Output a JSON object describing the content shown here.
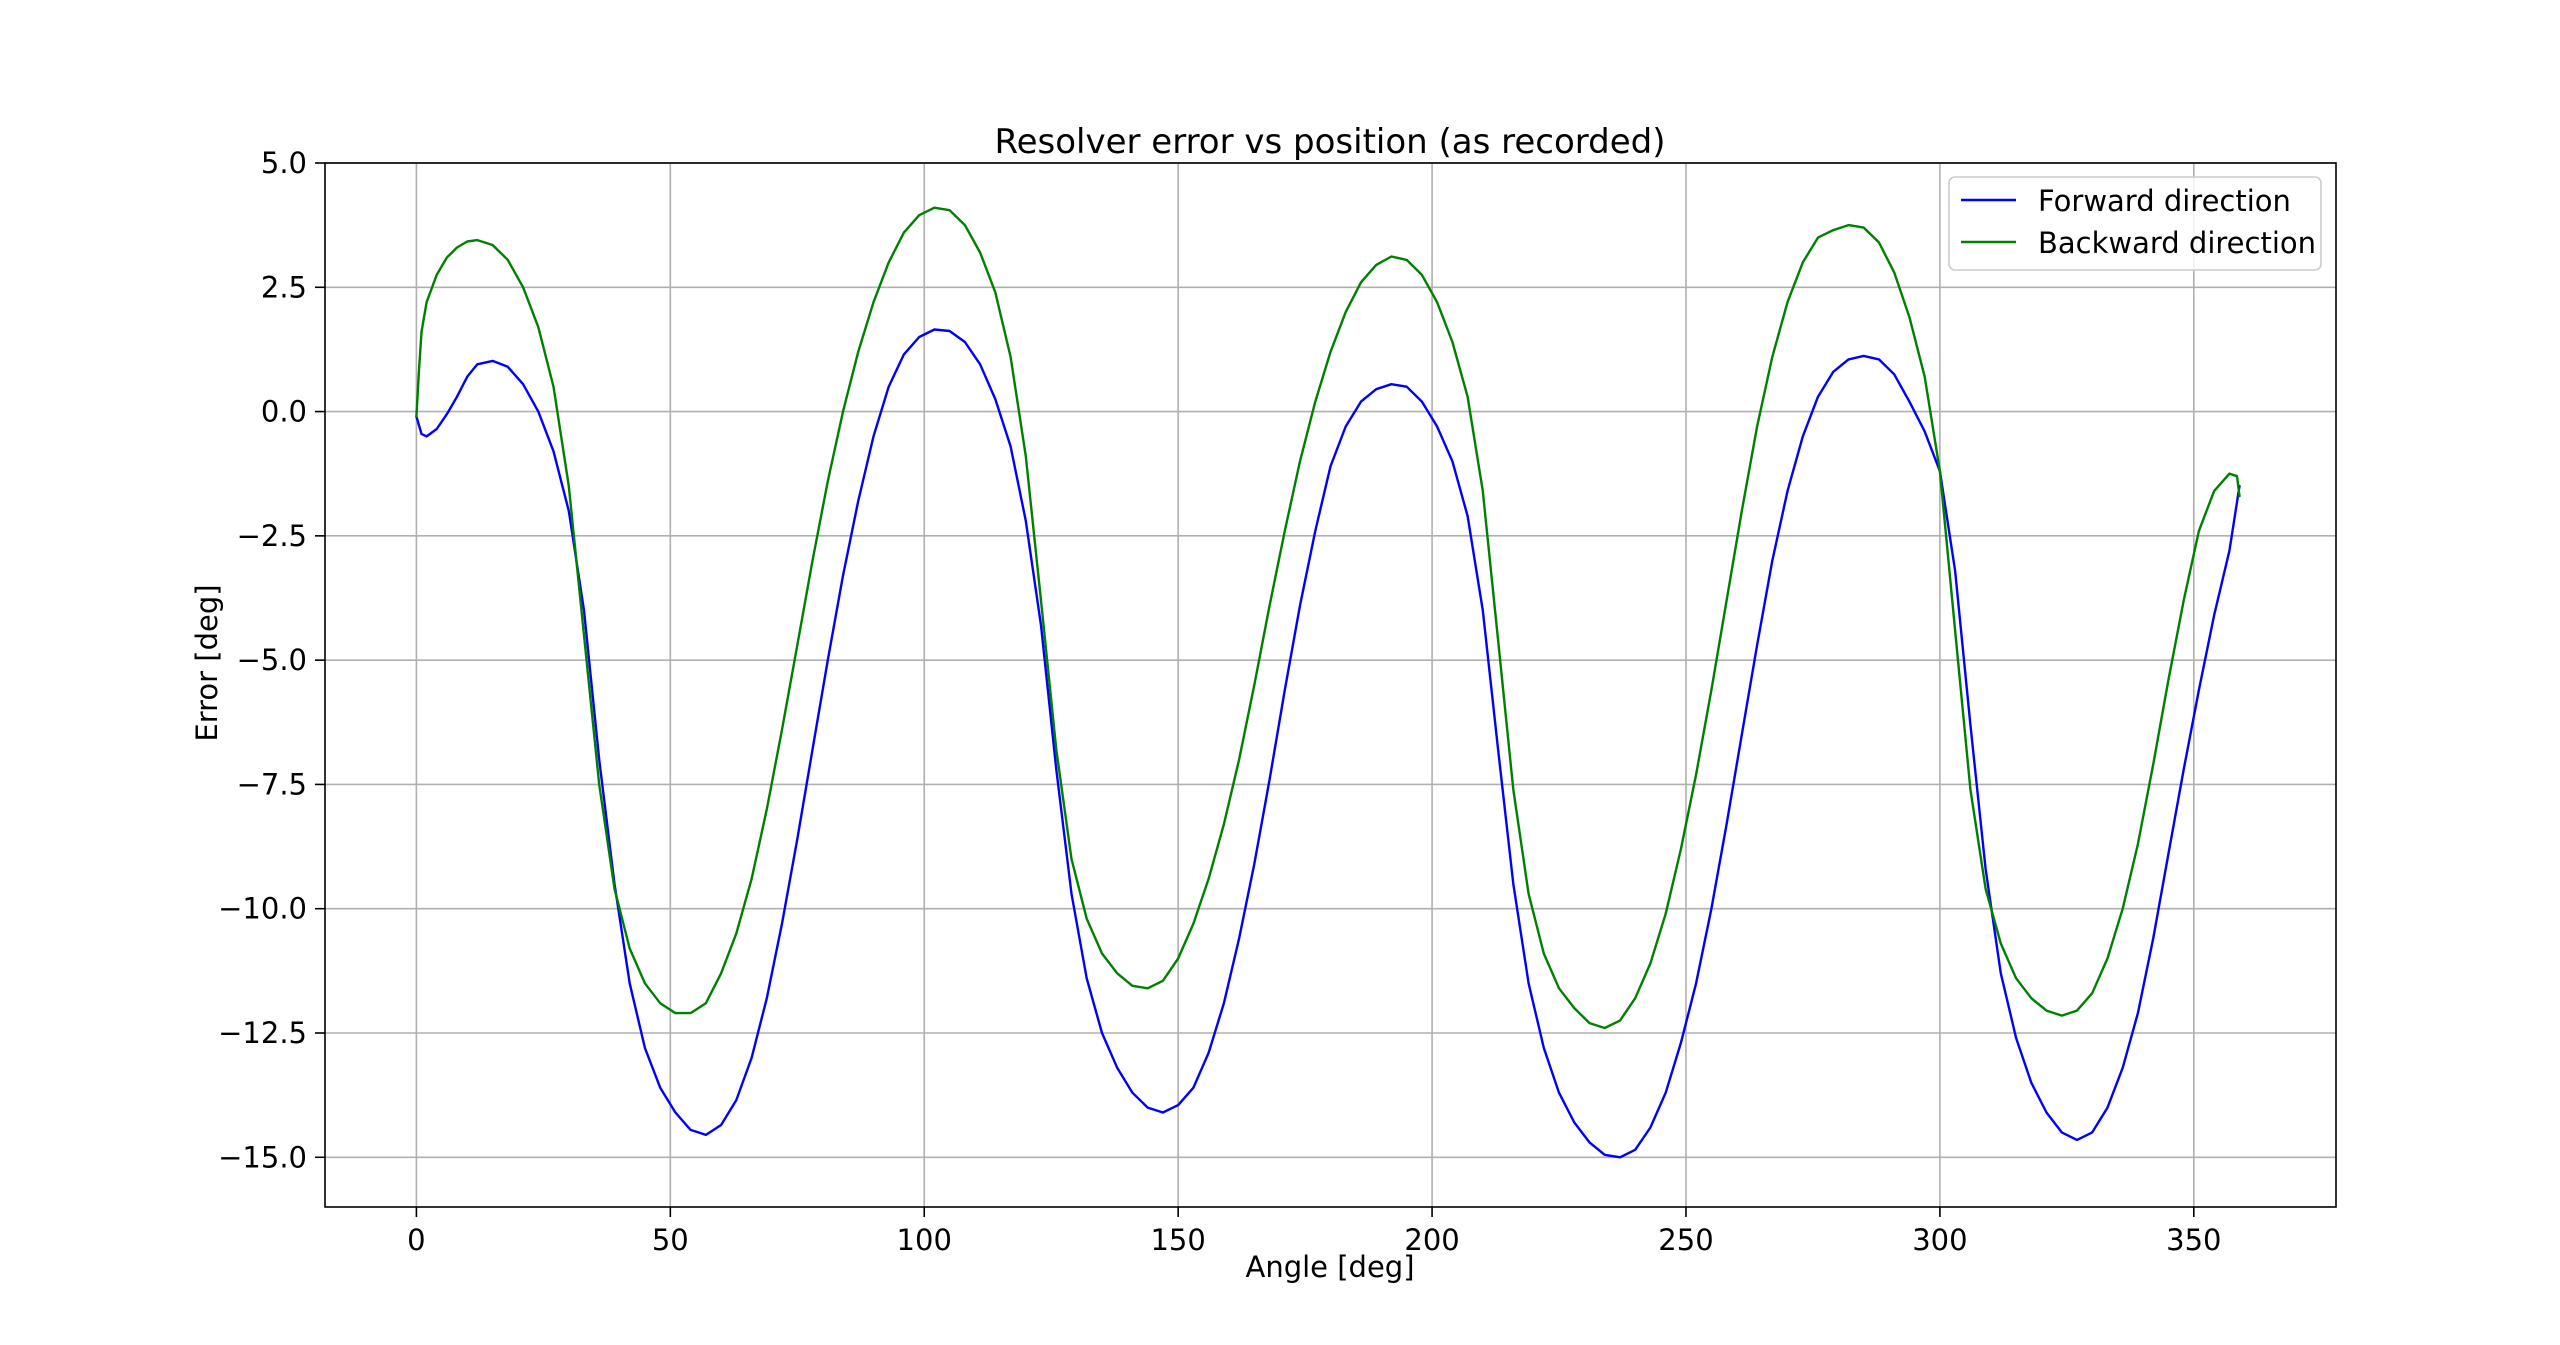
{
  "chart_data": {
    "type": "line",
    "title": "Resolver error vs position (as recorded)",
    "xlabel": "Angle [deg]",
    "ylabel": "Error [deg]",
    "xlim": [
      -18,
      378
    ],
    "ylim": [
      -16,
      5
    ],
    "xticks": [
      0,
      50,
      100,
      150,
      200,
      250,
      300,
      350
    ],
    "xtick_labels": [
      "0",
      "50",
      "100",
      "150",
      "200",
      "250",
      "300",
      "350"
    ],
    "yticks": [
      5,
      2.5,
      0,
      -2.5,
      -5,
      -7.5,
      -10,
      -12.5,
      -15
    ],
    "ytick_labels": [
      "5.0",
      "2.5",
      "0.0",
      "−2.5",
      "−5.0",
      "−7.5",
      "−10.0",
      "−12.5",
      "−15.0"
    ],
    "grid": true,
    "legend_position": "top-right",
    "series": [
      {
        "name": "Forward direction",
        "color": "#0000ff",
        "points": [
          [
            0,
            -0.1
          ],
          [
            1,
            -0.45
          ],
          [
            2,
            -0.5
          ],
          [
            4,
            -0.35
          ],
          [
            6,
            -0.05
          ],
          [
            8,
            0.3
          ],
          [
            10,
            0.7
          ],
          [
            12,
            0.95
          ],
          [
            15,
            1.02
          ],
          [
            18,
            0.9
          ],
          [
            21,
            0.55
          ],
          [
            24,
            0.0
          ],
          [
            27,
            -0.8
          ],
          [
            30,
            -2.0
          ],
          [
            33,
            -4.0
          ],
          [
            36,
            -7.0
          ],
          [
            39,
            -9.5
          ],
          [
            42,
            -11.5
          ],
          [
            45,
            -12.8
          ],
          [
            48,
            -13.6
          ],
          [
            51,
            -14.1
          ],
          [
            54,
            -14.45
          ],
          [
            57,
            -14.55
          ],
          [
            60,
            -14.35
          ],
          [
            63,
            -13.85
          ],
          [
            66,
            -13.0
          ],
          [
            69,
            -11.8
          ],
          [
            72,
            -10.3
          ],
          [
            75,
            -8.6
          ],
          [
            78,
            -6.8
          ],
          [
            81,
            -5.0
          ],
          [
            84,
            -3.3
          ],
          [
            87,
            -1.8
          ],
          [
            90,
            -0.5
          ],
          [
            93,
            0.5
          ],
          [
            96,
            1.15
          ],
          [
            99,
            1.5
          ],
          [
            102,
            1.65
          ],
          [
            105,
            1.62
          ],
          [
            108,
            1.4
          ],
          [
            111,
            0.95
          ],
          [
            114,
            0.25
          ],
          [
            117,
            -0.7
          ],
          [
            120,
            -2.2
          ],
          [
            123,
            -4.3
          ],
          [
            126,
            -7.2
          ],
          [
            129,
            -9.7
          ],
          [
            132,
            -11.4
          ],
          [
            135,
            -12.5
          ],
          [
            138,
            -13.2
          ],
          [
            141,
            -13.7
          ],
          [
            144,
            -14.0
          ],
          [
            147,
            -14.1
          ],
          [
            150,
            -13.95
          ],
          [
            153,
            -13.6
          ],
          [
            156,
            -12.9
          ],
          [
            159,
            -11.9
          ],
          [
            162,
            -10.6
          ],
          [
            165,
            -9.1
          ],
          [
            168,
            -7.4
          ],
          [
            171,
            -5.6
          ],
          [
            174,
            -3.9
          ],
          [
            177,
            -2.4
          ],
          [
            180,
            -1.1
          ],
          [
            183,
            -0.3
          ],
          [
            186,
            0.2
          ],
          [
            189,
            0.45
          ],
          [
            192,
            0.55
          ],
          [
            195,
            0.5
          ],
          [
            198,
            0.2
          ],
          [
            201,
            -0.3
          ],
          [
            204,
            -1.0
          ],
          [
            207,
            -2.1
          ],
          [
            210,
            -4.0
          ],
          [
            213,
            -6.8
          ],
          [
            216,
            -9.5
          ],
          [
            219,
            -11.5
          ],
          [
            222,
            -12.8
          ],
          [
            225,
            -13.7
          ],
          [
            228,
            -14.3
          ],
          [
            231,
            -14.7
          ],
          [
            234,
            -14.95
          ],
          [
            237,
            -15.0
          ],
          [
            240,
            -14.85
          ],
          [
            243,
            -14.4
          ],
          [
            246,
            -13.7
          ],
          [
            249,
            -12.7
          ],
          [
            252,
            -11.5
          ],
          [
            255,
            -10.0
          ],
          [
            258,
            -8.3
          ],
          [
            261,
            -6.5
          ],
          [
            264,
            -4.7
          ],
          [
            267,
            -3.0
          ],
          [
            270,
            -1.6
          ],
          [
            273,
            -0.5
          ],
          [
            276,
            0.3
          ],
          [
            279,
            0.8
          ],
          [
            282,
            1.05
          ],
          [
            285,
            1.12
          ],
          [
            288,
            1.05
          ],
          [
            291,
            0.75
          ],
          [
            294,
            0.2
          ],
          [
            297,
            -0.4
          ],
          [
            300,
            -1.2
          ],
          [
            303,
            -3.2
          ],
          [
            306,
            -6.3
          ],
          [
            309,
            -9.2
          ],
          [
            312,
            -11.3
          ],
          [
            315,
            -12.6
          ],
          [
            318,
            -13.5
          ],
          [
            321,
            -14.1
          ],
          [
            324,
            -14.5
          ],
          [
            327,
            -14.65
          ],
          [
            330,
            -14.5
          ],
          [
            333,
            -14.0
          ],
          [
            336,
            -13.2
          ],
          [
            339,
            -12.1
          ],
          [
            342,
            -10.6
          ],
          [
            345,
            -8.9
          ],
          [
            348,
            -7.2
          ],
          [
            351,
            -5.6
          ],
          [
            354,
            -4.1
          ],
          [
            357,
            -2.8
          ],
          [
            359,
            -1.5
          ]
        ]
      },
      {
        "name": "Backward direction",
        "color": "#008000",
        "points": [
          [
            0,
            -0.1
          ],
          [
            0.5,
            0.8
          ],
          [
            1,
            1.6
          ],
          [
            2,
            2.2
          ],
          [
            4,
            2.75
          ],
          [
            6,
            3.1
          ],
          [
            8,
            3.3
          ],
          [
            10,
            3.42
          ],
          [
            12,
            3.45
          ],
          [
            15,
            3.35
          ],
          [
            18,
            3.05
          ],
          [
            21,
            2.5
          ],
          [
            24,
            1.7
          ],
          [
            27,
            0.5
          ],
          [
            30,
            -1.5
          ],
          [
            33,
            -4.5
          ],
          [
            36,
            -7.5
          ],
          [
            39,
            -9.6
          ],
          [
            42,
            -10.8
          ],
          [
            45,
            -11.5
          ],
          [
            48,
            -11.9
          ],
          [
            51,
            -12.1
          ],
          [
            54,
            -12.1
          ],
          [
            57,
            -11.9
          ],
          [
            60,
            -11.3
          ],
          [
            63,
            -10.5
          ],
          [
            66,
            -9.4
          ],
          [
            69,
            -8.0
          ],
          [
            72,
            -6.4
          ],
          [
            75,
            -4.7
          ],
          [
            78,
            -3.0
          ],
          [
            81,
            -1.4
          ],
          [
            84,
            0.0
          ],
          [
            87,
            1.2
          ],
          [
            90,
            2.2
          ],
          [
            93,
            3.0
          ],
          [
            96,
            3.6
          ],
          [
            99,
            3.95
          ],
          [
            102,
            4.1
          ],
          [
            105,
            4.05
          ],
          [
            108,
            3.75
          ],
          [
            111,
            3.2
          ],
          [
            114,
            2.4
          ],
          [
            117,
            1.1
          ],
          [
            120,
            -0.9
          ],
          [
            123,
            -3.8
          ],
          [
            126,
            -6.8
          ],
          [
            129,
            -9.0
          ],
          [
            132,
            -10.2
          ],
          [
            135,
            -10.9
          ],
          [
            138,
            -11.3
          ],
          [
            141,
            -11.55
          ],
          [
            144,
            -11.6
          ],
          [
            147,
            -11.45
          ],
          [
            150,
            -11.0
          ],
          [
            153,
            -10.3
          ],
          [
            156,
            -9.4
          ],
          [
            159,
            -8.3
          ],
          [
            162,
            -7.0
          ],
          [
            165,
            -5.5
          ],
          [
            168,
            -3.9
          ],
          [
            171,
            -2.4
          ],
          [
            174,
            -1.0
          ],
          [
            177,
            0.2
          ],
          [
            180,
            1.2
          ],
          [
            183,
            2.0
          ],
          [
            186,
            2.6
          ],
          [
            189,
            2.95
          ],
          [
            192,
            3.12
          ],
          [
            195,
            3.05
          ],
          [
            198,
            2.75
          ],
          [
            201,
            2.2
          ],
          [
            204,
            1.4
          ],
          [
            207,
            0.3
          ],
          [
            210,
            -1.6
          ],
          [
            213,
            -4.6
          ],
          [
            216,
            -7.6
          ],
          [
            219,
            -9.7
          ],
          [
            222,
            -10.9
          ],
          [
            225,
            -11.6
          ],
          [
            228,
            -12.0
          ],
          [
            231,
            -12.3
          ],
          [
            234,
            -12.4
          ],
          [
            237,
            -12.25
          ],
          [
            240,
            -11.8
          ],
          [
            243,
            -11.1
          ],
          [
            246,
            -10.1
          ],
          [
            249,
            -8.8
          ],
          [
            252,
            -7.3
          ],
          [
            255,
            -5.6
          ],
          [
            258,
            -3.8
          ],
          [
            261,
            -2.0
          ],
          [
            264,
            -0.3
          ],
          [
            267,
            1.1
          ],
          [
            270,
            2.2
          ],
          [
            273,
            3.0
          ],
          [
            276,
            3.5
          ],
          [
            279,
            3.65
          ],
          [
            282,
            3.75
          ],
          [
            285,
            3.7
          ],
          [
            288,
            3.4
          ],
          [
            291,
            2.8
          ],
          [
            294,
            1.9
          ],
          [
            297,
            0.7
          ],
          [
            300,
            -1.2
          ],
          [
            303,
            -4.4
          ],
          [
            306,
            -7.6
          ],
          [
            309,
            -9.6
          ],
          [
            312,
            -10.7
          ],
          [
            315,
            -11.4
          ],
          [
            318,
            -11.8
          ],
          [
            321,
            -12.05
          ],
          [
            324,
            -12.15
          ],
          [
            327,
            -12.05
          ],
          [
            330,
            -11.7
          ],
          [
            333,
            -11.0
          ],
          [
            336,
            -10.0
          ],
          [
            339,
            -8.7
          ],
          [
            342,
            -7.1
          ],
          [
            345,
            -5.4
          ],
          [
            348,
            -3.8
          ],
          [
            351,
            -2.4
          ],
          [
            354,
            -1.6
          ],
          [
            357,
            -1.25
          ],
          [
            358.5,
            -1.3
          ],
          [
            359,
            -1.7
          ]
        ]
      }
    ]
  }
}
